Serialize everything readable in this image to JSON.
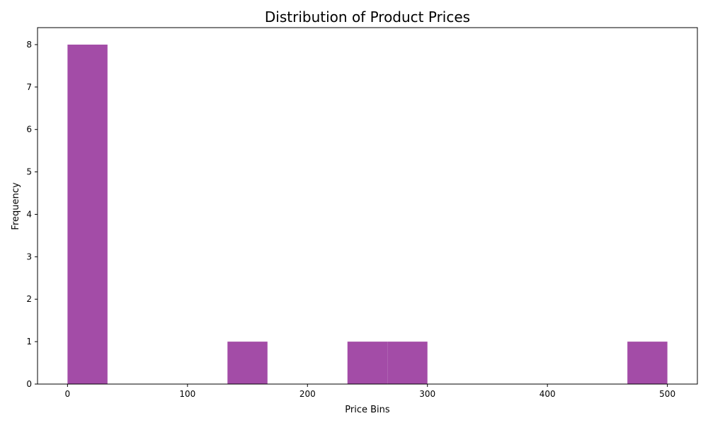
{
  "chart_data": {
    "type": "bar",
    "title": "Distribution of Product Prices",
    "xlabel": "Price Bins",
    "ylabel": "Frequency",
    "xlim": [
      -25,
      525
    ],
    "ylim": [
      0,
      8.4
    ],
    "x_ticks": [
      0,
      100,
      200,
      300,
      400,
      500
    ],
    "y_ticks": [
      0,
      1,
      2,
      3,
      4,
      5,
      6,
      7,
      8
    ],
    "bins": [
      {
        "start": 0,
        "end": 33.33,
        "count": 8
      },
      {
        "start": 33.33,
        "end": 66.67,
        "count": 0
      },
      {
        "start": 66.67,
        "end": 100,
        "count": 0
      },
      {
        "start": 100,
        "end": 133.33,
        "count": 0
      },
      {
        "start": 133.33,
        "end": 166.67,
        "count": 1
      },
      {
        "start": 166.67,
        "end": 200,
        "count": 0
      },
      {
        "start": 200,
        "end": 233.33,
        "count": 0
      },
      {
        "start": 233.33,
        "end": 266.67,
        "count": 1
      },
      {
        "start": 266.67,
        "end": 300,
        "count": 1
      },
      {
        "start": 300,
        "end": 333.33,
        "count": 0
      },
      {
        "start": 333.33,
        "end": 366.67,
        "count": 0
      },
      {
        "start": 366.67,
        "end": 400,
        "count": 0
      },
      {
        "start": 400,
        "end": 433.33,
        "count": 0
      },
      {
        "start": 433.33,
        "end": 466.67,
        "count": 0
      },
      {
        "start": 466.67,
        "end": 500,
        "count": 1
      }
    ],
    "bar_color": "#a34ca7",
    "grid": false,
    "legend": "none"
  }
}
